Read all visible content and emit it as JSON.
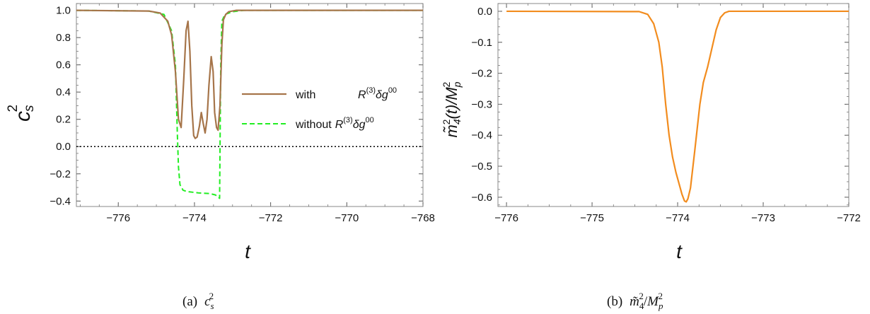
{
  "chart_data": [
    {
      "type": "line",
      "caption": "(a)  c_s^2",
      "caption_parts": {
        "prefix": "(a)",
        "base": "c",
        "sub": "s",
        "sup": "2"
      },
      "xlabel": "t",
      "ylabel": "c_s^2",
      "ylabel_parts": {
        "base": "c",
        "sub": "s",
        "sup": "2"
      },
      "xlim": [
        -777.1,
        -768
      ],
      "ylim": [
        -0.44,
        1.05
      ],
      "xticks": [
        -776,
        -774,
        -772,
        -770,
        -768
      ],
      "yticks": [
        -0.4,
        -0.2,
        0.0,
        0.2,
        0.4,
        0.6,
        0.8,
        1.0
      ],
      "ytick_labels": [
        "−0.4",
        "−0.2",
        "0.0",
        "0.2",
        "0.4",
        "0.6",
        "0.8",
        "1.0"
      ],
      "xtick_labels": [
        "−776",
        "−774",
        "−772",
        "−770",
        "−768"
      ],
      "reference_line": {
        "y": 0.0,
        "style": "dotted",
        "color": "#000000"
      },
      "legend_placement": "center-right",
      "series": [
        {
          "name": "with R^(3) δg^00",
          "legend_parts": {
            "word": "with",
            "R": "R",
            "Rsup": "(3)",
            "delta": "δg",
            "gsup": "00"
          },
          "color": "#a6754a",
          "style": "solid",
          "x": [
            -777.1,
            -775.2,
            -774.9,
            -774.7,
            -774.6,
            -774.5,
            -774.42,
            -774.35,
            -774.28,
            -774.22,
            -774.17,
            -774.12,
            -774.07,
            -774.02,
            -773.98,
            -773.93,
            -773.87,
            -773.82,
            -773.77,
            -773.72,
            -773.67,
            -773.62,
            -773.56,
            -773.51,
            -773.47,
            -773.42,
            -773.38,
            -773.33,
            -773.28,
            -773.24,
            -773.18,
            -773.1,
            -773.0,
            -772.9,
            -772.7,
            -772.5,
            -768.0
          ],
          "y": [
            1.0,
            0.995,
            0.98,
            0.92,
            0.82,
            0.55,
            0.2,
            0.14,
            0.5,
            0.85,
            0.92,
            0.7,
            0.3,
            0.08,
            0.06,
            0.07,
            0.15,
            0.25,
            0.17,
            0.1,
            0.2,
            0.45,
            0.66,
            0.55,
            0.25,
            0.14,
            0.12,
            0.3,
            0.75,
            0.93,
            0.97,
            0.99,
            0.995,
            1.0,
            1.0,
            1.0,
            1.0
          ]
        },
        {
          "name": "without R^(3) δg^00",
          "legend_parts": {
            "word": "without",
            "R": "R",
            "Rsup": "(3)",
            "delta": "δg",
            "gsup": "00"
          },
          "color": "#22ee22",
          "style": "dashed",
          "x": [
            -777.1,
            -775.2,
            -774.8,
            -774.6,
            -774.5,
            -774.45,
            -774.42,
            -774.38,
            -774.3,
            -774.2,
            -773.9,
            -773.6,
            -773.45,
            -773.38,
            -773.34,
            -773.31,
            -773.28,
            -773.2,
            -773.0,
            -772.7,
            -768.0
          ],
          "y": [
            1.0,
            0.995,
            0.97,
            0.85,
            0.6,
            0.1,
            -0.15,
            -0.28,
            -0.32,
            -0.33,
            -0.34,
            -0.345,
            -0.355,
            -0.37,
            -0.38,
            0.6,
            0.92,
            0.97,
            0.99,
            1.0,
            1.0
          ]
        }
      ]
    },
    {
      "type": "line",
      "caption": "(b)  m̃_4^2/M_p^2",
      "caption_parts": {
        "prefix": "(b)",
        "m": "m̃",
        "msub": "4",
        "msup": "2",
        "M": "M",
        "Msub": "p",
        "Msup": "2"
      },
      "xlabel": "t",
      "ylabel": "m̃_4^2(t)/M_p^2",
      "ylabel_parts": {
        "m": "m̃",
        "msub": "4",
        "msup": "2",
        "mid": "(t)/",
        "M": "M",
        "Msub": "p",
        "Msup": "2"
      },
      "xlim": [
        -776.1,
        -772
      ],
      "ylim": [
        -0.63,
        0.025
      ],
      "xticks": [
        -776,
        -775,
        -774,
        -773,
        -772
      ],
      "xtick_labels": [
        "−776",
        "−775",
        "−774",
        "−773",
        "−772"
      ],
      "yticks": [
        -0.6,
        -0.5,
        -0.4,
        -0.3,
        -0.2,
        -0.1,
        0.0
      ],
      "ytick_labels": [
        "−0.6",
        "−0.5",
        "−0.4",
        "−0.3",
        "−0.2",
        "−0.1",
        "0.0"
      ],
      "series": [
        {
          "color": "#f28c1e",
          "style": "solid",
          "x": [
            -776.0,
            -774.45,
            -774.35,
            -774.28,
            -774.22,
            -774.18,
            -774.14,
            -774.1,
            -774.06,
            -774.02,
            -773.98,
            -773.95,
            -773.92,
            -773.9,
            -773.88,
            -773.85,
            -773.8,
            -773.74,
            -773.7,
            -773.65,
            -773.6,
            -773.55,
            -773.5,
            -773.45,
            -773.4,
            -772.0
          ],
          "y": [
            0.0,
            -0.001,
            -0.01,
            -0.04,
            -0.1,
            -0.18,
            -0.3,
            -0.4,
            -0.47,
            -0.52,
            -0.56,
            -0.59,
            -0.612,
            -0.615,
            -0.605,
            -0.57,
            -0.45,
            -0.3,
            -0.23,
            -0.18,
            -0.12,
            -0.06,
            -0.02,
            -0.005,
            0.0,
            0.0
          ]
        }
      ]
    }
  ]
}
